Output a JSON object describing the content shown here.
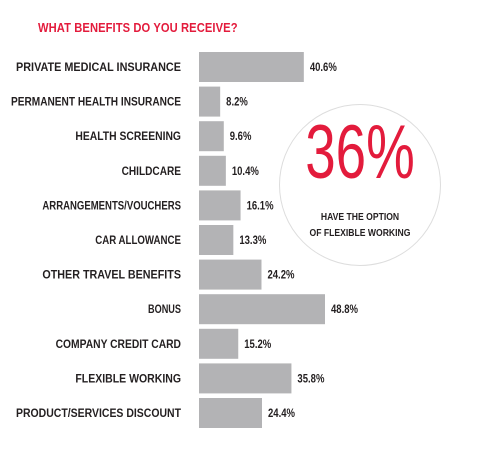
{
  "colors": {
    "accent": "#e31b3c",
    "bar": "#b3b3b5",
    "text": "#231f20"
  },
  "callout": {
    "value": "36%",
    "line1": "HAVE THE OPTION",
    "line2": "OF FLEXIBLE WORKING"
  },
  "chart_data": {
    "type": "bar",
    "orientation": "horizontal",
    "title": "WHAT BENEFITS DO YOU RECEIVE?",
    "categories": [
      "PRIVATE MEDICAL INSURANCE",
      "PERMANENT HEALTH INSURANCE",
      "HEALTH SCREENING",
      "CHILDCARE",
      "ARRANGEMENTS/VOUCHERS",
      "CAR ALLOWANCE",
      "OTHER TRAVEL BENEFITS",
      "BONUS",
      "COMPANY CREDIT CARD",
      "FLEXIBLE WORKING",
      "PRODUCT/SERVICES DISCOUNT"
    ],
    "values": [
      40.6,
      8.2,
      9.6,
      10.4,
      16.1,
      13.3,
      24.2,
      48.8,
      15.2,
      35.8,
      24.4
    ],
    "value_labels": [
      "40.6%",
      "8.2%",
      "9.6%",
      "10.4%",
      "16.1%",
      "13.3%",
      "24.2%",
      "48.8%",
      "15.2%",
      "35.8%",
      "24.4%"
    ],
    "xlim": [
      0,
      48.8
    ],
    "grid": false,
    "legend": false
  }
}
